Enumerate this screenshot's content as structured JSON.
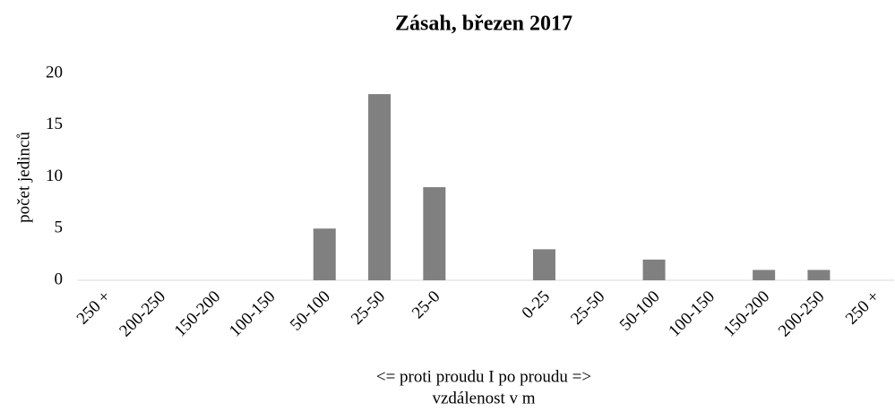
{
  "chart_data": {
    "type": "bar",
    "title": "Zásah, březen 2017",
    "categories": [
      "250 +",
      "200-250",
      "150-200",
      "100-150",
      "50-100",
      "25-50",
      "25-0",
      null,
      "0-25",
      "25-50",
      "50-100",
      "100-150",
      "150-200",
      "200-250",
      "250 +"
    ],
    "values": [
      0,
      0,
      0,
      0,
      5,
      18,
      9,
      null,
      3,
      0,
      2,
      0,
      1,
      1,
      0
    ],
    "color": "#808080",
    "ylim": [
      0,
      20
    ],
    "yticks": [
      0,
      5,
      10,
      15,
      20
    ],
    "grid": false,
    "xlabel": [
      "<= proti proudu I po proudu =>",
      "vzdálenost v m"
    ],
    "ylabel": "počet jedinců"
  }
}
